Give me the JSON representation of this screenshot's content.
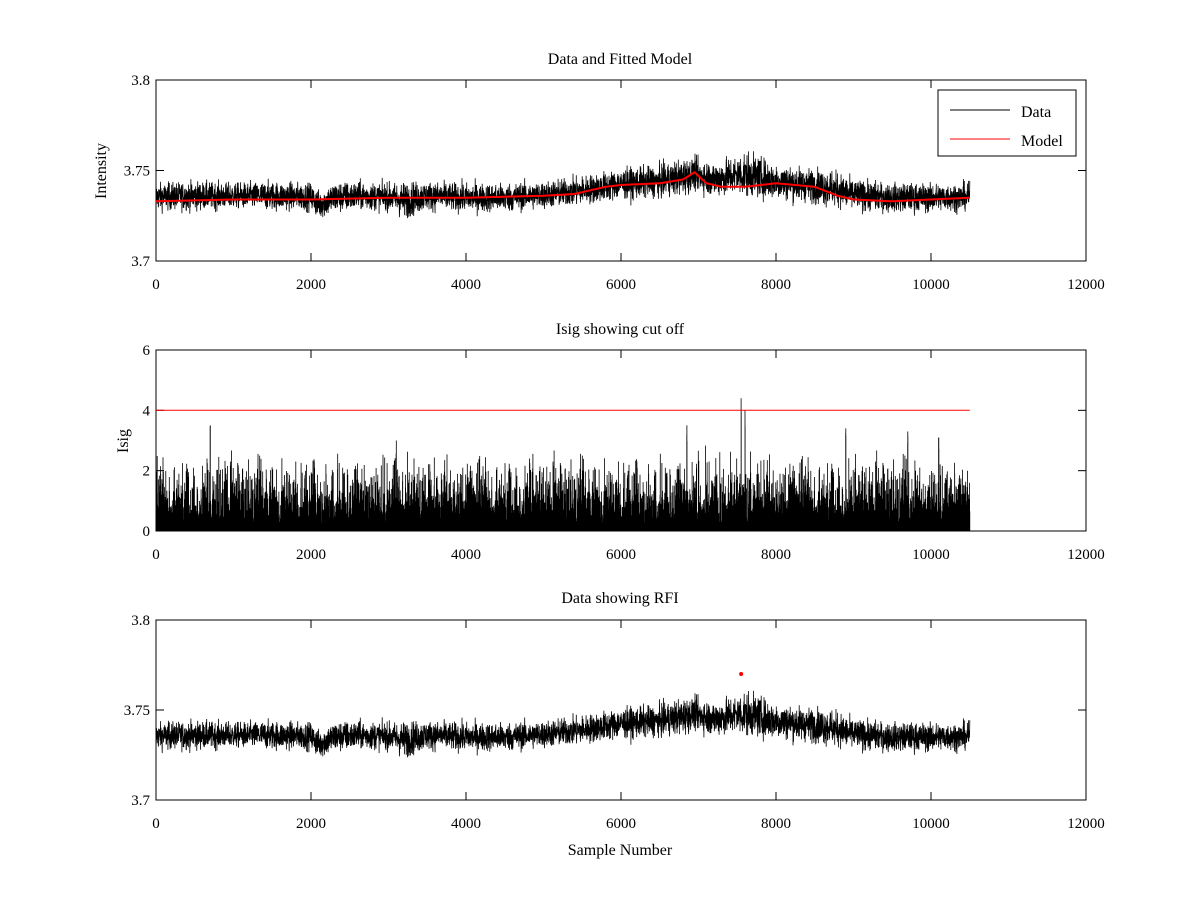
{
  "chart_data": [
    {
      "type": "line",
      "title": "Data and Fitted Model",
      "xlabel": "",
      "ylabel": "Intensity",
      "xlim": [
        0,
        12000
      ],
      "ylim": [
        3.7,
        3.8
      ],
      "xticks": [
        "0",
        "2000",
        "4000",
        "6000",
        "8000",
        "10000",
        "12000"
      ],
      "yticks": [
        "3.7",
        "3.75",
        "3.8"
      ],
      "legend": {
        "position": "top-right",
        "entries": [
          "Data",
          "Model"
        ]
      },
      "series": [
        {
          "name": "Data",
          "color": "#000000",
          "kind": "noise",
          "x_range": [
            0,
            10500
          ],
          "envelope_x": [
            0,
            500,
            1000,
            1500,
            2000,
            2100,
            2300,
            2600,
            3000,
            3200,
            3500,
            4000,
            4500,
            5000,
            5500,
            6000,
            6500,
            6800,
            6950,
            7200,
            7500,
            7600,
            8000,
            8500,
            8700,
            9000,
            9500,
            10000,
            10500
          ],
          "envelope_low": [
            3.727,
            3.727,
            3.728,
            3.727,
            3.727,
            3.722,
            3.725,
            3.727,
            3.727,
            3.722,
            3.727,
            3.726,
            3.726,
            3.728,
            3.73,
            3.733,
            3.734,
            3.735,
            3.738,
            3.734,
            3.735,
            3.734,
            3.733,
            3.731,
            3.729,
            3.727,
            3.726,
            3.726,
            3.727
          ],
          "envelope_high": [
            3.744,
            3.745,
            3.744,
            3.745,
            3.744,
            3.74,
            3.745,
            3.745,
            3.744,
            3.745,
            3.745,
            3.744,
            3.744,
            3.745,
            3.748,
            3.752,
            3.754,
            3.758,
            3.758,
            3.756,
            3.76,
            3.762,
            3.755,
            3.752,
            3.752,
            3.746,
            3.744,
            3.744,
            3.744
          ]
        },
        {
          "name": "Model",
          "color": "#ff0000",
          "x": [
            0,
            1000,
            2000,
            3000,
            4000,
            5000,
            5400,
            5800,
            6000,
            6500,
            6800,
            6950,
            7100,
            7300,
            7600,
            8000,
            8500,
            8800,
            9000,
            9500,
            10000,
            10500
          ],
          "y": [
            3.733,
            3.734,
            3.734,
            3.735,
            3.735,
            3.736,
            3.737,
            3.741,
            3.742,
            3.743,
            3.745,
            3.749,
            3.743,
            3.741,
            3.741,
            3.743,
            3.741,
            3.736,
            3.734,
            3.733,
            3.734,
            3.735
          ]
        }
      ]
    },
    {
      "type": "line",
      "title": "Isig showing cut off",
      "xlabel": "",
      "ylabel": "Isig",
      "xlim": [
        0,
        12000
      ],
      "ylim": [
        0,
        6
      ],
      "xticks": [
        "0",
        "2000",
        "4000",
        "6000",
        "8000",
        "10000",
        "12000"
      ],
      "yticks": [
        "0",
        "2",
        "4",
        "6"
      ],
      "series": [
        {
          "name": "Isig",
          "color": "#000000",
          "kind": "spikes",
          "x_range": [
            0,
            10500
          ],
          "typical_max": 2.2,
          "peaks": [
            {
              "x": 700,
              "y": 3.5
            },
            {
              "x": 3100,
              "y": 3.0
            },
            {
              "x": 6850,
              "y": 3.5
            },
            {
              "x": 7550,
              "y": 4.4
            },
            {
              "x": 7600,
              "y": 4.0
            },
            {
              "x": 8900,
              "y": 3.4
            },
            {
              "x": 9700,
              "y": 3.3
            },
            {
              "x": 10100,
              "y": 3.1
            }
          ]
        },
        {
          "name": "Cut off",
          "color": "#ff0000",
          "x": [
            0,
            10500
          ],
          "y": [
            4,
            4
          ]
        }
      ]
    },
    {
      "type": "line",
      "title": "Data showing RFI",
      "xlabel": "Sample Number",
      "ylabel": "",
      "xlim": [
        0,
        12000
      ],
      "ylim": [
        3.7,
        3.8
      ],
      "xticks": [
        "0",
        "2000",
        "4000",
        "6000",
        "8000",
        "10000",
        "12000"
      ],
      "yticks": [
        "3.7",
        "3.75",
        "3.8"
      ],
      "series": [
        {
          "name": "Data",
          "color": "#000000",
          "kind": "noise",
          "same_as": "Data and Fitted Model / Data"
        },
        {
          "name": "RFI",
          "color": "#ff0000",
          "kind": "markers",
          "x": [
            7550
          ],
          "y": [
            3.77
          ]
        }
      ]
    }
  ]
}
